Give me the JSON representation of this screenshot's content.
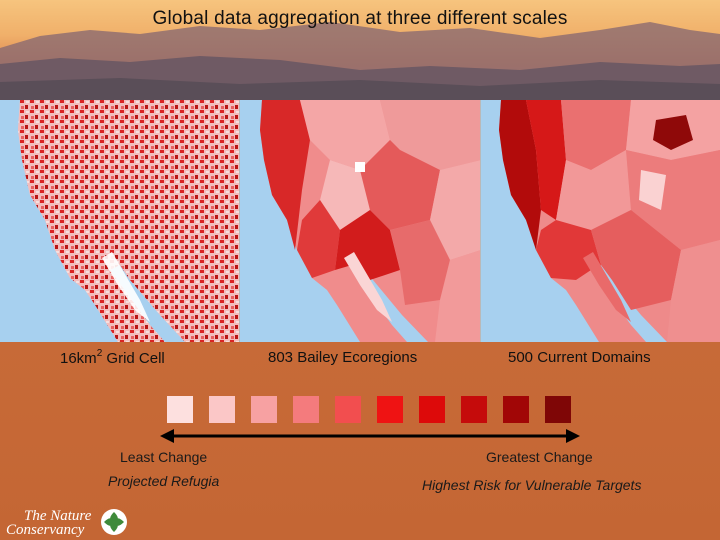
{
  "slide": {
    "title": "Global data aggregation at three different scales"
  },
  "maps": [
    {
      "label_main": "16km",
      "label_sup": "2",
      "label_rest": " Grid Cell",
      "style": "fine-grid"
    },
    {
      "label_main": "803 Bailey Ecoregions",
      "style": "ecoregions"
    },
    {
      "label_main": "500 Current Domains",
      "style": "domains"
    }
  ],
  "legend": {
    "colors": [
      "#fde0df",
      "#fbc7c7",
      "#f7a1a2",
      "#f47b7d",
      "#f24e4f",
      "#ef1313",
      "#dd0a0a",
      "#c50b0b",
      "#a10606",
      "#7f0606"
    ],
    "least_change": "Least Change",
    "projected_refugia": "Projected Refugia",
    "greatest_change": "Greatest Change",
    "highest_risk": "Highest Risk for Vulnerable Targets"
  },
  "logo": {
    "line1": "The Nature",
    "line2": "Conservancy",
    "icon": "leaf-icon"
  }
}
